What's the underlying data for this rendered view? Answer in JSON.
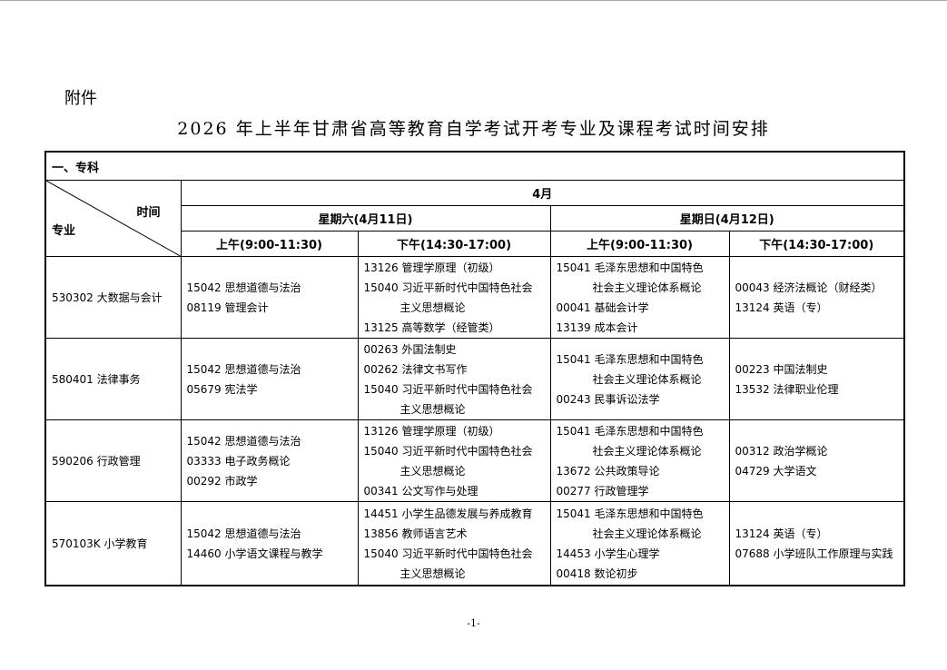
{
  "attachment_label": "附件",
  "title": "2026 年上半年甘肃省高等教育自学考试开考专业及课程考试时间安排",
  "section": "一、专科",
  "header": {
    "diag_time": "时间",
    "diag_major": "专业",
    "month": "4月",
    "days": [
      "星期六(4月11日)",
      "星期日(4月12日)"
    ],
    "slots": [
      "上午(9:00-11:30)",
      "下午(14:30-17:00)",
      "上午(9:00-11:30)",
      "下午(14:30-17:00)"
    ]
  },
  "rows": [
    {
      "major": "530302 大数据与会计",
      "cells": [
        [
          {
            "text": "15042 思想道德与法治"
          },
          {
            "text": "08119 管理会计"
          }
        ],
        [
          {
            "text": "13126 管理学原理（初级）"
          },
          {
            "text": "15040 习近平新时代中国特色社会",
            "cont": "主义思想概论"
          },
          {
            "text": "13125 高等数学（经管类）"
          }
        ],
        [
          {
            "text": "15041 毛泽东思想和中国特色",
            "cont": "社会主义理论体系概论"
          },
          {
            "text": "00041 基础会计学"
          },
          {
            "text": "13139 成本会计"
          }
        ],
        [
          {
            "text": "00043 经济法概论（财经类）"
          },
          {
            "text": "13124 英语（专）"
          }
        ]
      ]
    },
    {
      "major": "580401 法律事务",
      "cells": [
        [
          {
            "text": "15042 思想道德与法治"
          },
          {
            "text": "05679 宪法学"
          }
        ],
        [
          {
            "text": "00263 外国法制史"
          },
          {
            "text": "00262 法律文书写作"
          },
          {
            "text": "15040 习近平新时代中国特色社会",
            "cont": "主义思想概论"
          }
        ],
        [
          {
            "text": "15041 毛泽东思想和中国特色",
            "cont": "社会主义理论体系概论"
          },
          {
            "text": "00243 民事诉讼法学"
          }
        ],
        [
          {
            "text": "00223 中国法制史"
          },
          {
            "text": "13532 法律职业伦理"
          }
        ]
      ]
    },
    {
      "major": "590206 行政管理",
      "cells": [
        [
          {
            "text": "15042 思想道德与法治"
          },
          {
            "text": "03333 电子政务概论"
          },
          {
            "text": "00292 市政学"
          }
        ],
        [
          {
            "text": "13126 管理学原理（初级）"
          },
          {
            "text": "15040 习近平新时代中国特色社会",
            "cont": "主义思想概论"
          },
          {
            "text": "00341 公文写作与处理"
          }
        ],
        [
          {
            "text": "15041 毛泽东思想和中国特色",
            "cont": "社会主义理论体系概论"
          },
          {
            "text": "13672 公共政策导论"
          },
          {
            "text": "00277 行政管理学"
          }
        ],
        [
          {
            "text": "00312 政治学概论"
          },
          {
            "text": "04729 大学语文"
          }
        ]
      ]
    },
    {
      "major": "570103K 小学教育",
      "cells": [
        [
          {
            "text": "15042 思想道德与法治"
          },
          {
            "text": "14460 小学语文课程与教学"
          }
        ],
        [
          {
            "text": "14451 小学生品德发展与养成教育"
          },
          {
            "text": "13856 教师语言艺术"
          },
          {
            "text": "15040 习近平新时代中国特色社会",
            "cont": "主义思想概论"
          }
        ],
        [
          {
            "text": "15041 毛泽东思想和中国特色",
            "cont": "社会主义理论体系概论"
          },
          {
            "text": "14453 小学生心理学"
          },
          {
            "text": "00418 数论初步"
          }
        ],
        [
          {
            "text": "13124 英语（专）"
          },
          {
            "text": "07688 小学班队工作原理与实践"
          }
        ]
      ]
    }
  ],
  "page_number": "-1-"
}
